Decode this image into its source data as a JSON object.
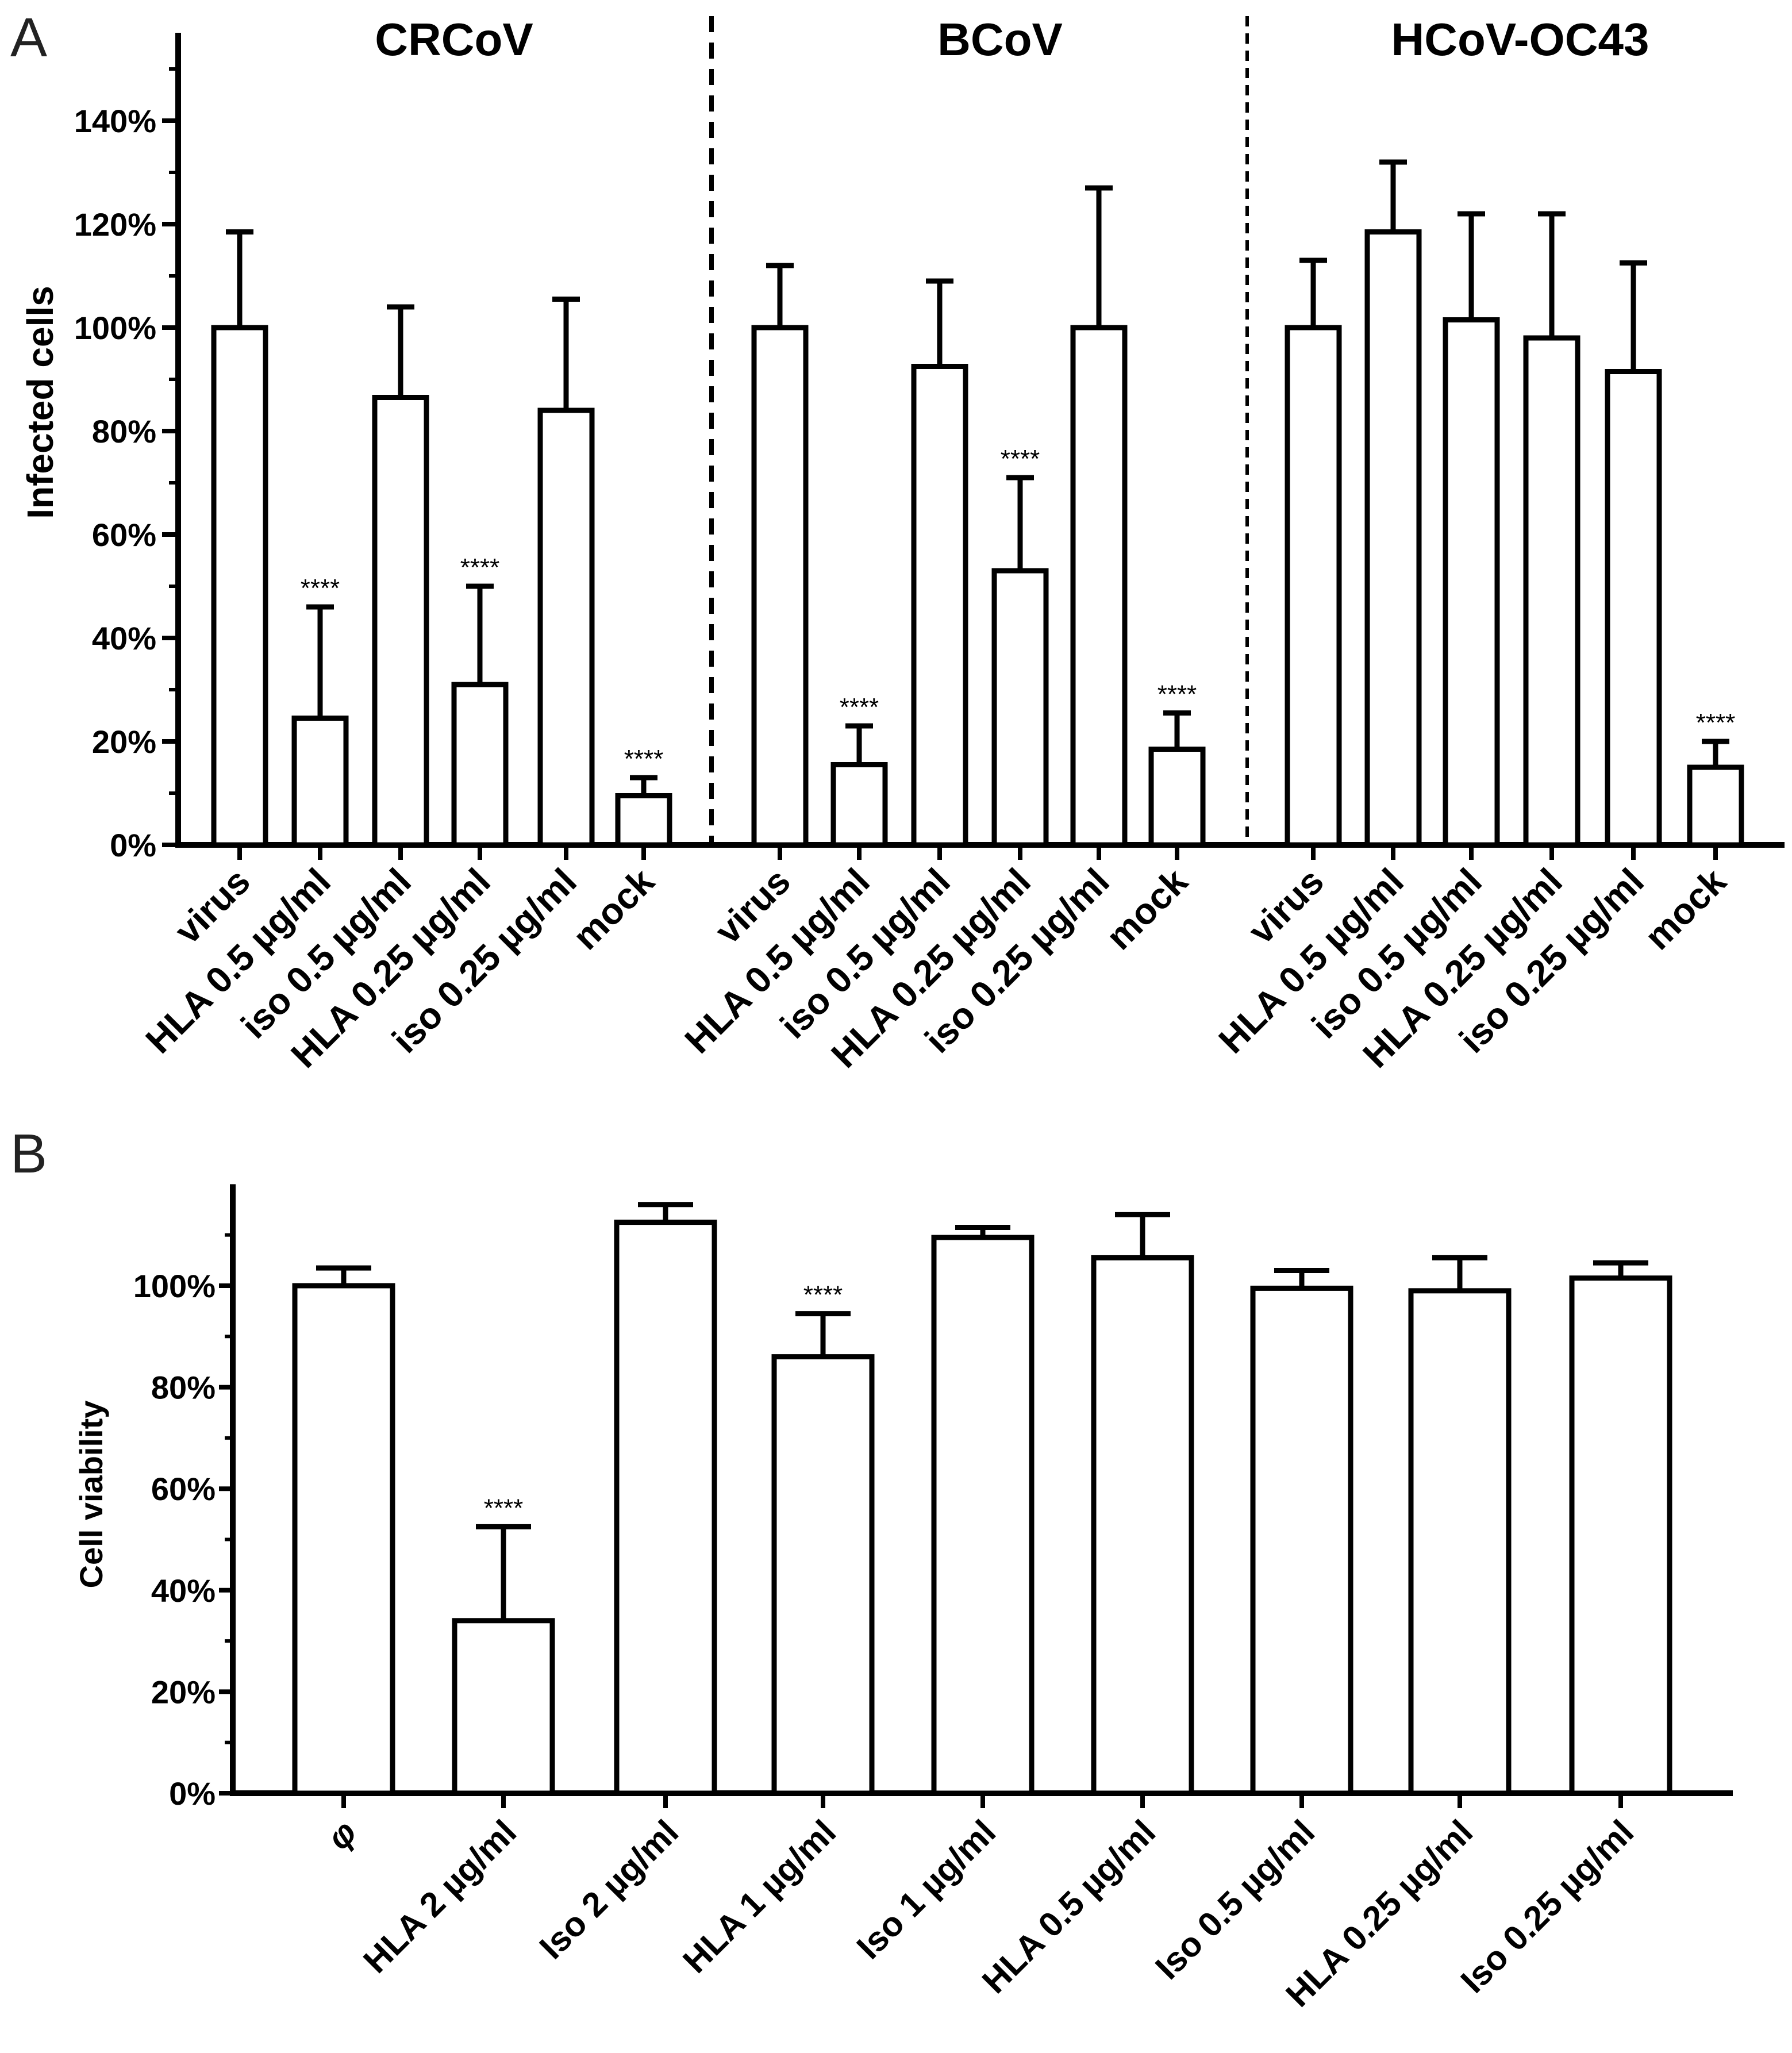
{
  "chart_data": [
    {
      "panel": "A",
      "type": "bar",
      "ylabel": "Infected cells",
      "ylim": [
        0,
        160
      ],
      "yticks": [
        "0%",
        "20%",
        "40%",
        "60%",
        "80%",
        "100%",
        "120%",
        "140%"
      ],
      "significance": "****",
      "groups": [
        {
          "title": "CRCoV",
          "categories": [
            "virus",
            "HLA 0.5 µg/ml",
            "iso 0.5 µg/ml",
            "HLA 0.25 µg/ml",
            "iso 0.25 µg/ml",
            "mock"
          ],
          "values": [
            100,
            24.5,
            86.5,
            31,
            84,
            9.5
          ],
          "errors": [
            18.5,
            21.5,
            17.5,
            19,
            21.5,
            3.5
          ],
          "significant": [
            false,
            true,
            false,
            true,
            false,
            true
          ]
        },
        {
          "title": "BCoV",
          "categories": [
            "virus",
            "HLA 0.5 µg/ml",
            "iso 0.5 µg/ml",
            "HLA 0.25 µg/ml",
            "iso 0.25 µg/ml",
            "mock"
          ],
          "values": [
            100,
            15.5,
            92.5,
            53,
            100,
            18.5
          ],
          "errors": [
            12,
            7.5,
            16.5,
            18,
            27,
            7
          ],
          "significant": [
            false,
            true,
            false,
            true,
            false,
            true
          ]
        },
        {
          "title": "HCoV-OC43",
          "categories": [
            "virus",
            "HLA 0.5 µg/ml",
            "iso 0.5 µg/ml",
            "HLA 0.25 µg/ml",
            "iso 0.25 µg/ml",
            "mock"
          ],
          "values": [
            100,
            118.5,
            101.5,
            98,
            91.5,
            15
          ],
          "errors": [
            13,
            13.5,
            20.5,
            24,
            21,
            5
          ],
          "significant": [
            false,
            false,
            false,
            false,
            false,
            true
          ]
        }
      ]
    },
    {
      "panel": "B",
      "type": "bar",
      "ylabel": "Cell viability",
      "ylim": [
        0,
        120
      ],
      "yticks": [
        "0%",
        "20%",
        "40%",
        "60%",
        "80%",
        "100%"
      ],
      "significance": "****",
      "categories": [
        "φ",
        "HLA 2 µg/ml",
        "Iso 2 µg/ml",
        "HLA 1 µg/ml",
        "Iso 1 µg/ml",
        "HLA 0.5 µg/ml",
        "Iso 0.5 µg/ml",
        "HLA 0.25 µg/ml",
        "Iso 0.25 µg/ml"
      ],
      "values": [
        100,
        34,
        112.5,
        86,
        109.5,
        105.5,
        99.5,
        99,
        101.5
      ],
      "errors": [
        3.5,
        18.5,
        3.5,
        8.5,
        2,
        8.5,
        3.5,
        6.5,
        3
      ],
      "significant": [
        false,
        true,
        false,
        true,
        false,
        false,
        false,
        false,
        false
      ]
    }
  ]
}
